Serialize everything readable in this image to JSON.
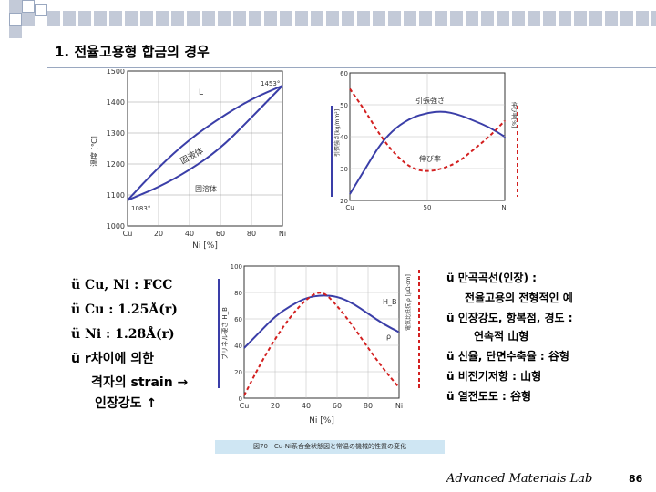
{
  "slide": {
    "title": "1. 전율고용형 합금의 경우",
    "bullets_left": [
      "ü Cu, Ni : FCC",
      "ü Cu : 1.25Å(r)",
      "ü Ni : 1.28Å(r)",
      "ü r차이에 의한",
      "격자의 strain →",
      "인장강도 ↑"
    ],
    "bullets_right": [
      "ü 만곡곡선(인장) :",
      "전율고용의 전형적인 예",
      "ü 인장강도, 항복점, 경도 :",
      "연속적 山형",
      "ü 신율, 단면수축율 : 谷형",
      "ü 비전기저항 : 山형",
      "ü 열전도도 : 谷형"
    ],
    "footer": "Advanced Materials Lab",
    "page_number": "86"
  },
  "phase_diagram": {
    "y_ticks": [
      "1500",
      "1400",
      "1300",
      "1200",
      "1100",
      "1000"
    ],
    "x_ticks": [
      "Cu",
      "20",
      "40",
      "60",
      "80",
      "Ni"
    ],
    "xlabel": "Ni  [%]",
    "ylabel": "溫度 [℃]",
    "label_liquid": "L",
    "label_liquidus": "固液体",
    "label_solid": "固溶体",
    "label_cu_melt": "1083°",
    "label_ni_melt": "1453°"
  },
  "tensile_chart": {
    "y_ticks": [
      "60",
      "50",
      "40",
      "30",
      "20"
    ],
    "x_ticks": [
      "Cu",
      "50",
      "Ni"
    ],
    "label_strength": "引張強さ",
    "label_elong": "伸び率",
    "ylabel_left": "引張強さ[kg/mm²]",
    "ylabel_right": "伸び率[%]"
  },
  "resist_chart": {
    "y_ticks": [
      "100",
      "80",
      "60",
      "40",
      "20",
      "0"
    ],
    "x_ticks": [
      "Cu",
      "20",
      "40",
      "60",
      "80",
      "Ni"
    ],
    "xlabel": "Ni  [%]",
    "ylabel_left": "ブリネル硬さ H_B",
    "ylabel_right": "電気比抵抗 ρ [μΩ·cm]",
    "label_hb": "H_B",
    "label_rho": "ρ"
  },
  "caption": "図70　Cu-Ni系合金状態図と常温の機械的性質の変化",
  "chart_data": [
    {
      "type": "line",
      "title": "",
      "xlabel": "Ni  [%]",
      "ylabel": "溫度 [℃]",
      "ylim": [
        1000,
        1500
      ],
      "x": [
        0,
        20,
        40,
        60,
        80,
        100
      ],
      "series": [
        {
          "name": "",
          "values": [
            1083,
            1190,
            1280,
            1350,
            1410,
            1453
          ]
        },
        {
          "name": "",
          "values": [
            1083,
            1125,
            1180,
            1250,
            1350,
            1453
          ]
        }
      ]
    },
    {
      "type": "line",
      "title": "",
      "xlabel": "",
      "ylabel": "引張強さ[kg/mm²]",
      "ylim": [
        20,
        60
      ],
      "x": [
        0,
        10,
        20,
        30,
        40,
        50,
        60,
        70,
        80,
        90,
        100
      ],
      "series": [
        {
          "name": "引張強さ",
          "values": [
            22,
            30,
            38,
            43,
            46,
            47.5,
            48,
            47,
            45,
            43,
            40
          ]
        },
        {
          "name": "伸び率",
          "values": [
            55,
            48,
            40,
            34,
            30,
            29,
            30,
            32,
            36,
            40,
            45
          ]
        }
      ]
    },
    {
      "type": "line",
      "title": "",
      "xlabel": "Ni  [%]",
      "ylabel": "ブリネル硬さ H_B",
      "ylim": [
        0,
        100
      ],
      "x": [
        0,
        10,
        20,
        30,
        40,
        50,
        60,
        70,
        80,
        90,
        100
      ],
      "series": [
        {
          "name": "H_B",
          "values": [
            38,
            50,
            62,
            70,
            76,
            78,
            77,
            72,
            64,
            56,
            50
          ]
        },
        {
          "name": "ρ",
          "values": [
            2,
            25,
            45,
            62,
            75,
            82,
            70,
            55,
            38,
            22,
            8
          ]
        }
      ]
    }
  ]
}
